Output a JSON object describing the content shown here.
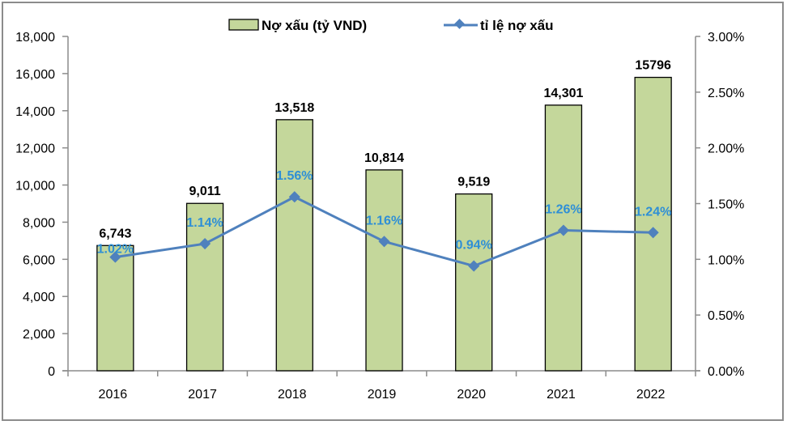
{
  "chart_data": {
    "type": "bar",
    "title": "",
    "categories": [
      "2016",
      "2017",
      "2018",
      "2019",
      "2020",
      "2021",
      "2022"
    ],
    "series": [
      {
        "name": "Nợ xấu (tỷ VND)",
        "type": "bar",
        "axis": "left",
        "values": [
          6743,
          9011,
          13518,
          10814,
          9519,
          14301,
          15796
        ],
        "labels": [
          "6,743",
          "9,011",
          "13,518",
          "10,814",
          "9,519",
          "14,301",
          "15796"
        ],
        "color": "#c4d79b"
      },
      {
        "name": "tỉ lệ nợ xấu",
        "type": "line",
        "axis": "right",
        "values": [
          1.02,
          1.14,
          1.56,
          1.16,
          0.94,
          1.26,
          1.24
        ],
        "labels": [
          "1.02%",
          "1.14%",
          "1.56%",
          "1.16%",
          "0.94%",
          "1.26%",
          "1.24%"
        ],
        "color": "#4f81bd",
        "label_color": "#2e8fd6"
      }
    ],
    "y_left": {
      "ylim": [
        0,
        18000
      ],
      "ticks": [
        "0",
        "2,000",
        "4,000",
        "6,000",
        "8,000",
        "10,000",
        "12,000",
        "14,000",
        "16,000",
        "18,000"
      ]
    },
    "y_right": {
      "ylim": [
        0,
        3.0
      ],
      "ticks": [
        "0.00%",
        "0.50%",
        "1.00%",
        "1.50%",
        "2.00%",
        "2.50%",
        "3.00%"
      ]
    },
    "xlabel": "",
    "ylabel": "",
    "grid": false,
    "legend": "top-center"
  }
}
